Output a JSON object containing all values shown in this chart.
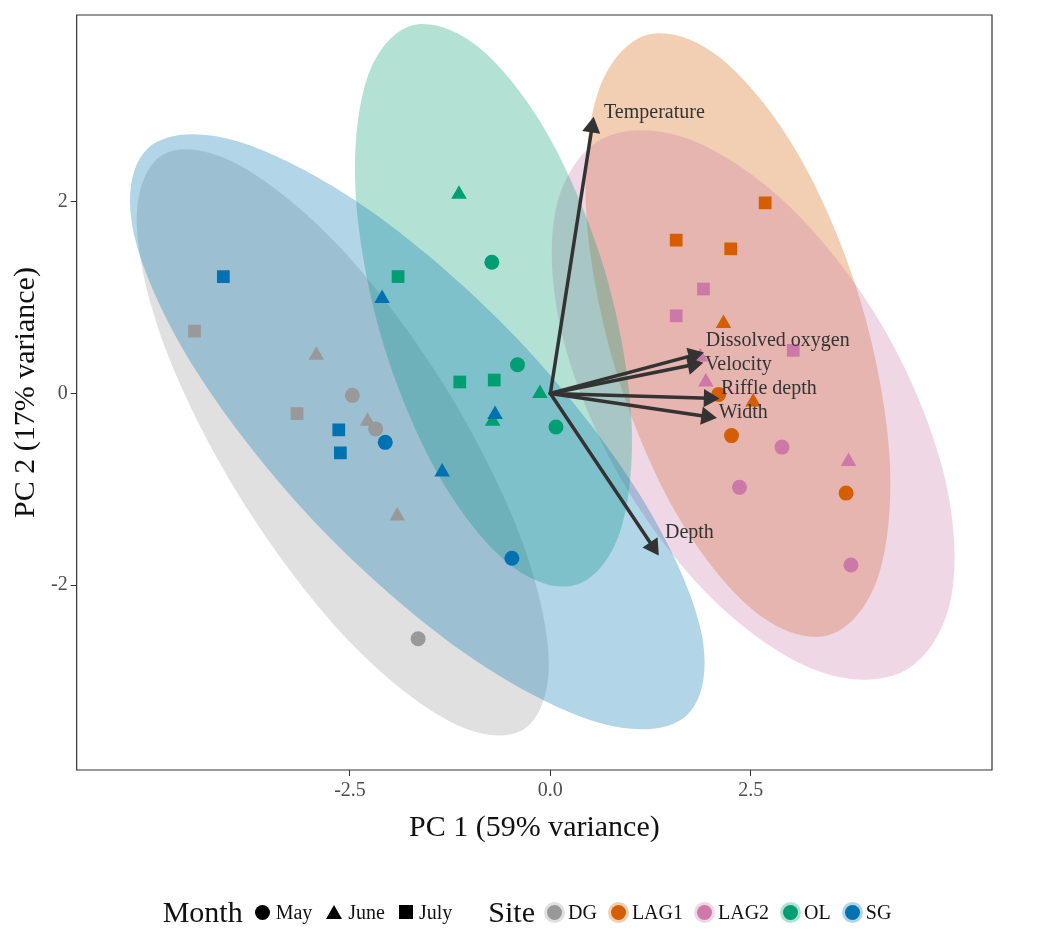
{
  "chart_data": {
    "type": "scatter",
    "xlabel": "PC 1 (59% variance)",
    "ylabel": "PC 2 (17% variance)",
    "xlim": [
      -5.91,
      5.51
    ],
    "ylim": [
      -3.93,
      3.95
    ],
    "xticks": [
      {
        "value": -2.5,
        "label": "-2.5"
      },
      {
        "value": 0,
        "label": "0.0"
      },
      {
        "value": 2.5,
        "label": "2.5"
      }
    ],
    "yticks": [
      -2,
      0,
      2
    ],
    "grid": false,
    "legend": "bottom",
    "legend_title": "Site",
    "annotations": [
      "Month",
      "May",
      "June",
      "July"
    ],
    "series": [
      {
        "marker": "circle",
        "color": "#000000",
        "x": [
          -2.47,
          -2.18,
          -1.65,
          2.1,
          2.26,
          3.69,
          2.89,
          2.36,
          3.75,
          -0.73,
          -0.41,
          0.07,
          -2.06,
          -0.48
        ],
        "values": [
          -0.02,
          -0.37,
          -2.56,
          -0.01,
          -0.44,
          -1.04,
          -0.56,
          -0.98,
          -1.79,
          1.37,
          0.3,
          -0.35,
          -0.51,
          -1.72
        ],
        "colors": [
          "#999999",
          "#999999",
          "#999999",
          "#D55E00",
          "#D55E00",
          "#D55E00",
          "#CC79A7",
          "#CC79A7",
          "#CC79A7",
          "#009E73",
          "#009E73",
          "#009E73",
          "#0072B2",
          "#0072B2"
        ]
      },
      {
        "marker": "triangle",
        "color": "#000000",
        "x": [
          -2.92,
          -2.28,
          -1.91,
          2.16,
          2.53,
          1.87,
          1.94,
          3.72,
          -1.14,
          -0.13,
          -0.72,
          -2.1,
          -1.35,
          -0.69
        ],
        "values": [
          0.4,
          -0.29,
          -1.28,
          0.73,
          -0.09,
          0.38,
          0.12,
          -0.71,
          2.08,
          0.0,
          -0.29,
          0.99,
          -0.82,
          -0.22
        ],
        "colors": [
          "#999999",
          "#999999",
          "#999999",
          "#D55E00",
          "#D55E00",
          "#CC79A7",
          "#CC79A7",
          "#CC79A7",
          "#009E73",
          "#009E73",
          "#009E73",
          "#0072B2",
          "#0072B2",
          "#0072B2"
        ]
      },
      {
        "marker": "square",
        "color": "#000000",
        "x": [
          -4.44,
          -3.16,
          2.68,
          1.57,
          2.25,
          1.91,
          1.57,
          3.03,
          -1.9,
          -1.13,
          -0.7,
          -4.08,
          -2.64,
          -2.62
        ],
        "values": [
          0.65,
          -0.21,
          1.99,
          1.6,
          1.51,
          1.09,
          0.81,
          0.45,
          1.22,
          0.12,
          0.14,
          1.22,
          -0.38,
          -0.62
        ],
        "colors": [
          "#999999",
          "#999999",
          "#D55E00",
          "#D55E00",
          "#D55E00",
          "#CC79A7",
          "#CC79A7",
          "#CC79A7",
          "#009E73",
          "#009E73",
          "#009E73",
          "#0072B2",
          "#0072B2",
          "#0072B2"
        ]
      },
      {
        "type": "area",
        "name": "DG",
        "color": "#E0E0E0",
        "x": [
          -0.34,
          -0.02,
          -0.39,
          -1.35,
          -2.64,
          -3.92,
          -4.84,
          -5.16,
          -4.79,
          -3.83,
          -2.54,
          -1.26,
          -0.34
        ],
        "values": [
          -3.51,
          -2.79,
          -1.46,
          0.12,
          1.54,
          2.4,
          2.49,
          1.77,
          0.44,
          -1.14,
          -2.56,
          -3.42,
          -3.51
        ]
      },
      {
        "type": "area",
        "name": "LAG1",
        "color": "#F2CFB3",
        "x": [
          3.48,
          4.09,
          4.23,
          3.86,
          3.09,
          2.11,
          1.2,
          0.59,
          0.45,
          0.82,
          1.59,
          2.57,
          3.48
        ],
        "values": [
          -2.52,
          -1.91,
          -0.63,
          0.99,
          2.5,
          3.51,
          3.74,
          3.13,
          1.85,
          0.23,
          -1.28,
          -2.29,
          -2.52
        ]
      },
      {
        "type": "area",
        "name": "LAG2",
        "color": "#F0D7E5",
        "x": [
          4.43,
          5.0,
          4.91,
          4.18,
          3.01,
          1.71,
          0.63,
          0.06,
          0.15,
          0.88,
          2.05,
          3.35,
          4.43
        ],
        "values": [
          -2.89,
          -2.13,
          -0.84,
          0.65,
          1.93,
          2.66,
          2.65,
          1.89,
          0.6,
          -0.89,
          -2.17,
          -2.9,
          -2.89
        ]
      },
      {
        "type": "area",
        "name": "OL",
        "color": "#B3E2D5",
        "x": [
          0.31,
          0.87,
          1.01,
          0.69,
          -0.01,
          -0.89,
          -1.73,
          -2.29,
          -2.43,
          -2.11,
          -1.41,
          -0.53,
          0.31
        ],
        "values": [
          -2.0,
          -1.44,
          -0.25,
          1.25,
          2.67,
          3.61,
          3.84,
          3.28,
          2.09,
          0.59,
          -0.83,
          -1.77,
          -2.0
        ]
      },
      {
        "type": "area",
        "name": "SG",
        "color": "#B3D5E8",
        "x": [
          1.7,
          1.88,
          1.11,
          -0.4,
          -2.25,
          -3.94,
          -5.02,
          -5.2,
          -4.43,
          -2.92,
          -1.07,
          0.62,
          1.7
        ],
        "values": [
          -3.36,
          -2.48,
          -1.05,
          0.56,
          1.91,
          2.64,
          2.56,
          1.68,
          0.25,
          -1.36,
          -2.71,
          -3.44,
          -3.36
        ]
      },
      {
        "type": "line",
        "name": "Temperature",
        "color": "#333333",
        "marker": "triangle",
        "x": [
          0,
          0.52
        ],
        "values": [
          0,
          2.78
        ]
      },
      {
        "type": "line",
        "name": "Dissolved oxygen",
        "color": "#333333",
        "marker": "triangle",
        "x": [
          0,
          1.79
        ],
        "values": [
          0,
          0.4
        ]
      },
      {
        "type": "line",
        "name": "Velocity",
        "color": "#333333",
        "marker": "triangle",
        "x": [
          0,
          1.78
        ],
        "values": [
          0,
          0.3
        ]
      },
      {
        "type": "line",
        "name": "Riffle depth",
        "color": "#333333",
        "marker": "triangle",
        "x": [
          0,
          1.98
        ],
        "values": [
          0,
          -0.05
        ]
      },
      {
        "type": "line",
        "name": "Width",
        "color": "#333333",
        "marker": "triangle",
        "x": [
          0,
          1.95
        ],
        "values": [
          0,
          -0.24
        ]
      },
      {
        "type": "line",
        "name": "Depth",
        "color": "#333333",
        "marker": "triangle",
        "x": [
          0,
          1.28
        ],
        "values": [
          0,
          -1.6
        ]
      }
    ]
  }
}
